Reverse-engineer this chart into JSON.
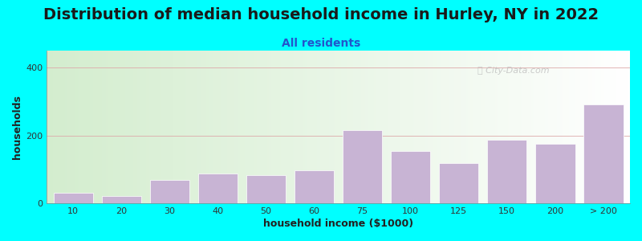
{
  "title": "Distribution of median household income in Hurley, NY in 2022",
  "subtitle": "All residents",
  "xlabel": "household income ($1000)",
  "ylabel": "households",
  "background_color": "#00FFFF",
  "bar_color": "#c8b4d4",
  "bar_edge_color": "#ffffff",
  "categories": [
    "10",
    "20",
    "30",
    "40",
    "50",
    "60",
    "75",
    "100",
    "125",
    "150",
    "200",
    "> 200"
  ],
  "values": [
    30,
    22,
    68,
    88,
    82,
    98,
    215,
    155,
    118,
    188,
    175,
    292
  ],
  "ylim": [
    0,
    450
  ],
  "yticks": [
    0,
    200,
    400
  ],
  "watermark": "Ⓢ City-Data.com",
  "title_fontsize": 14,
  "subtitle_fontsize": 10,
  "axis_label_fontsize": 9,
  "tick_fontsize": 8
}
